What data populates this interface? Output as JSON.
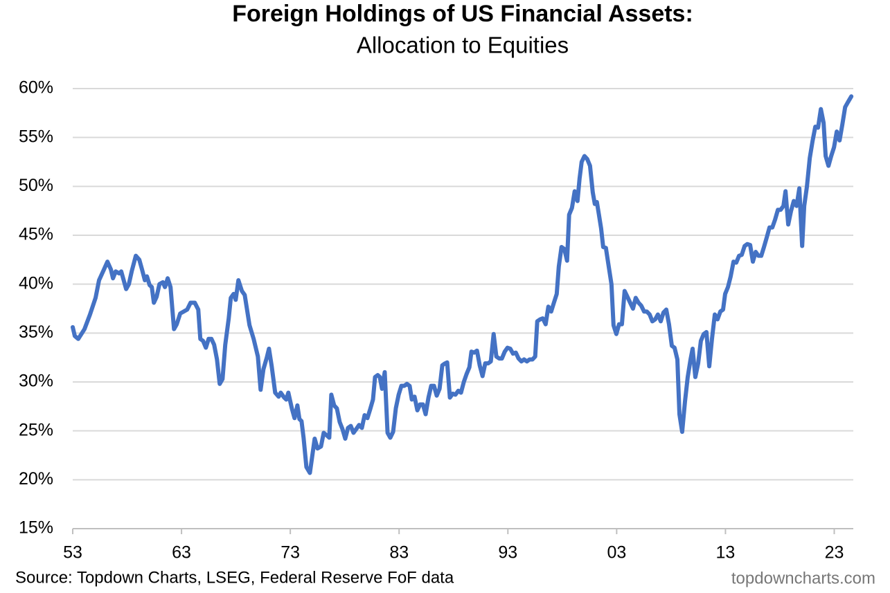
{
  "chart_data": {
    "type": "line",
    "title": "Foreign Holdings of US Financial Assets:",
    "subtitle": "Allocation to Equities",
    "source": "Source: Topdown Charts, LSEG, Federal Reserve FoF data",
    "watermark": "topdowncharts.com",
    "grid": true,
    "xlim": [
      1953,
      2024.75
    ],
    "xticks": [
      {
        "value": 1953,
        "label": "53"
      },
      {
        "value": 1963,
        "label": "63"
      },
      {
        "value": 1973,
        "label": "73"
      },
      {
        "value": 1983,
        "label": "83"
      },
      {
        "value": 1993,
        "label": "93"
      },
      {
        "value": 2003,
        "label": "03"
      },
      {
        "value": 2013,
        "label": "13"
      },
      {
        "value": 2023,
        "label": "23"
      }
    ],
    "ylim": [
      15,
      60
    ],
    "yticks": [
      {
        "value": 15,
        "label": "15%"
      },
      {
        "value": 20,
        "label": "20%"
      },
      {
        "value": 25,
        "label": "25%"
      },
      {
        "value": 30,
        "label": "30%"
      },
      {
        "value": 35,
        "label": "35%"
      },
      {
        "value": 40,
        "label": "40%"
      },
      {
        "value": 45,
        "label": "45%"
      },
      {
        "value": 50,
        "label": "50%"
      },
      {
        "value": 55,
        "label": "55%"
      },
      {
        "value": 60,
        "label": "60%"
      }
    ],
    "x": [
      1953.0,
      1953.19,
      1953.51,
      1954.08,
      1954.59,
      1955.1,
      1955.42,
      1955.87,
      1956.19,
      1956.51,
      1956.7,
      1956.95,
      1957.27,
      1957.46,
      1957.91,
      1958.16,
      1958.42,
      1958.8,
      1959.12,
      1959.37,
      1959.63,
      1959.82,
      1960.07,
      1960.27,
      1960.46,
      1960.71,
      1960.97,
      1961.29,
      1961.48,
      1961.73,
      1961.99,
      1962.31,
      1962.56,
      1962.88,
      1963.2,
      1963.52,
      1963.83,
      1964.22,
      1964.54,
      1964.73,
      1964.98,
      1965.24,
      1965.49,
      1965.75,
      1966.0,
      1966.26,
      1966.51,
      1966.77,
      1967.02,
      1967.34,
      1967.53,
      1967.79,
      1967.98,
      1968.23,
      1968.55,
      1968.81,
      1969.25,
      1969.63,
      1970.02,
      1970.27,
      1970.53,
      1970.84,
      1971.04,
      1971.29,
      1971.61,
      1971.93,
      1972.12,
      1972.44,
      1972.63,
      1972.82,
      1973.14,
      1973.39,
      1973.65,
      1973.84,
      1974.03,
      1974.22,
      1974.48,
      1974.8,
      1974.99,
      1975.24,
      1975.5,
      1975.82,
      1976.07,
      1976.39,
      1976.58,
      1976.77,
      1977.03,
      1977.28,
      1977.54,
      1977.79,
      1978.05,
      1978.3,
      1978.56,
      1978.81,
      1979.07,
      1979.32,
      1979.58,
      1979.83,
      1980.09,
      1980.34,
      1980.6,
      1980.79,
      1981.04,
      1981.23,
      1981.43,
      1981.68,
      1981.94,
      1982.19,
      1982.45,
      1982.7,
      1982.96,
      1983.21,
      1983.47,
      1983.72,
      1983.97,
      1984.17,
      1984.42,
      1984.68,
      1984.93,
      1985.19,
      1985.44,
      1985.7,
      1985.95,
      1986.21,
      1986.46,
      1986.72,
      1986.97,
      1987.23,
      1987.42,
      1987.67,
      1987.93,
      1988.18,
      1988.44,
      1988.69,
      1988.95,
      1989.2,
      1989.46,
      1989.65,
      1989.9,
      1990.16,
      1990.41,
      1990.67,
      1990.92,
      1991.18,
      1991.43,
      1991.69,
      1991.94,
      1992.2,
      1992.45,
      1992.71,
      1992.96,
      1993.22,
      1993.47,
      1993.73,
      1993.98,
      1994.24,
      1994.49,
      1994.75,
      1995.0,
      1995.26,
      1995.51,
      1995.7,
      1995.96,
      1996.21,
      1996.47,
      1996.72,
      1996.98,
      1997.23,
      1997.49,
      1997.68,
      1997.93,
      1998.19,
      1998.44,
      1998.63,
      1998.89,
      1999.14,
      1999.4,
      1999.59,
      1999.78,
      2000.04,
      2000.29,
      2000.55,
      2000.8,
      2000.99,
      2001.18,
      2001.37,
      2001.57,
      2001.76,
      2002.01,
      2002.27,
      2002.52,
      2002.71,
      2002.97,
      2003.22,
      2003.48,
      2003.73,
      2003.99,
      2004.24,
      2004.5,
      2004.75,
      2005.01,
      2005.26,
      2005.52,
      2005.77,
      2006.03,
      2006.28,
      2006.54,
      2006.79,
      2007.05,
      2007.3,
      2007.56,
      2007.81,
      2008.07,
      2008.32,
      2008.58,
      2008.77,
      2009.02,
      2009.28,
      2009.53,
      2009.79,
      2009.98,
      2010.23,
      2010.49,
      2010.74,
      2011.0,
      2011.25,
      2011.51,
      2011.76,
      2012.02,
      2012.27,
      2012.53,
      2012.78,
      2012.97,
      2013.23,
      2013.48,
      2013.74,
      2013.99,
      2014.25,
      2014.5,
      2014.76,
      2015.01,
      2015.27,
      2015.52,
      2015.78,
      2016.03,
      2016.29,
      2016.54,
      2016.8,
      2017.05,
      2017.31,
      2017.56,
      2017.82,
      2018.07,
      2018.33,
      2018.52,
      2018.77,
      2019.03,
      2019.28,
      2019.54,
      2019.79,
      2020.05,
      2020.24,
      2020.49,
      2020.75,
      2021.0,
      2021.26,
      2021.51,
      2021.77,
      2022.02,
      2022.21,
      2022.47,
      2022.72,
      2022.98,
      2023.23,
      2023.49,
      2023.74,
      2024.0,
      2024.25,
      2024.57
    ],
    "series": [
      {
        "name": "Allocation to Equities",
        "color": "#4472c4",
        "values": [
          35.6,
          34.7,
          34.4,
          35.4,
          36.9,
          38.6,
          40.4,
          41.5,
          42.3,
          41.5,
          40.6,
          41.3,
          41.1,
          41.3,
          39.5,
          40.0,
          41.3,
          42.9,
          42.5,
          41.5,
          40.4,
          40.8,
          39.9,
          39.7,
          38.1,
          38.7,
          40.0,
          40.2,
          39.7,
          40.6,
          39.7,
          35.4,
          35.9,
          37.0,
          37.2,
          37.4,
          38.1,
          38.1,
          37.4,
          34.4,
          34.2,
          33.5,
          34.4,
          34.4,
          33.8,
          32.3,
          29.8,
          30.3,
          33.8,
          36.5,
          38.6,
          39.0,
          38.4,
          40.4,
          39.3,
          38.9,
          35.8,
          34.4,
          32.6,
          29.2,
          31.3,
          32.5,
          33.4,
          31.6,
          28.9,
          28.5,
          28.9,
          28.4,
          28.2,
          28.9,
          27.3,
          26.3,
          27.6,
          26.2,
          26.0,
          24.3,
          21.3,
          20.7,
          22.2,
          24.2,
          23.2,
          23.4,
          24.8,
          24.5,
          24.3,
          28.7,
          27.6,
          27.3,
          25.9,
          25.2,
          24.2,
          25.3,
          25.5,
          24.8,
          25.2,
          25.6,
          25.3,
          26.6,
          26.3,
          27.2,
          28.2,
          30.5,
          30.7,
          30.5,
          29.3,
          31.0,
          24.8,
          24.3,
          24.9,
          27.3,
          28.7,
          29.6,
          29.6,
          29.8,
          29.6,
          28.2,
          28.5,
          27.1,
          27.7,
          27.7,
          26.7,
          28.4,
          29.6,
          29.6,
          28.6,
          29.3,
          31.7,
          31.9,
          32.0,
          28.4,
          28.8,
          28.7,
          29.1,
          28.9,
          30.0,
          30.8,
          31.5,
          33.1,
          33.0,
          33.2,
          31.7,
          30.6,
          31.9,
          31.9,
          32.1,
          34.9,
          32.6,
          32.4,
          32.4,
          33.1,
          33.5,
          33.4,
          32.9,
          33.0,
          32.4,
          32.1,
          32.3,
          32.1,
          32.3,
          32.3,
          32.6,
          36.2,
          36.4,
          36.5,
          35.9,
          37.7,
          37.2,
          38.1,
          39.0,
          41.8,
          43.8,
          43.6,
          42.4,
          47.1,
          47.8,
          49.5,
          48.5,
          50.8,
          52.5,
          53.1,
          52.8,
          52.1,
          49.4,
          48.2,
          48.4,
          47.1,
          45.7,
          43.8,
          43.7,
          41.8,
          40.0,
          35.8,
          34.9,
          35.9,
          35.9,
          39.3,
          38.7,
          38.1,
          37.5,
          38.6,
          38.1,
          37.8,
          37.2,
          37.2,
          36.9,
          36.2,
          36.4,
          36.9,
          36.2,
          37.1,
          37.4,
          35.9,
          33.7,
          33.5,
          32.3,
          26.7,
          24.9,
          28.0,
          30.5,
          32.3,
          33.4,
          30.5,
          31.9,
          34.2,
          34.9,
          35.1,
          31.6,
          34.4,
          36.9,
          36.4,
          37.2,
          37.4,
          39.0,
          39.7,
          40.8,
          42.3,
          42.2,
          42.9,
          43.0,
          43.9,
          44.1,
          44.0,
          42.3,
          43.3,
          42.9,
          42.9,
          43.8,
          44.8,
          45.8,
          45.8,
          46.6,
          47.6,
          47.6,
          48.0,
          49.5,
          46.1,
          47.5,
          48.5,
          48.0,
          49.8,
          43.9,
          48.0,
          50.0,
          52.9,
          54.6,
          56.1,
          56.0,
          57.9,
          56.5,
          53.1,
          52.1,
          53.1,
          54.0,
          55.6,
          54.7,
          56.3,
          58.1,
          58.6,
          59.2
        ]
      }
    ]
  }
}
